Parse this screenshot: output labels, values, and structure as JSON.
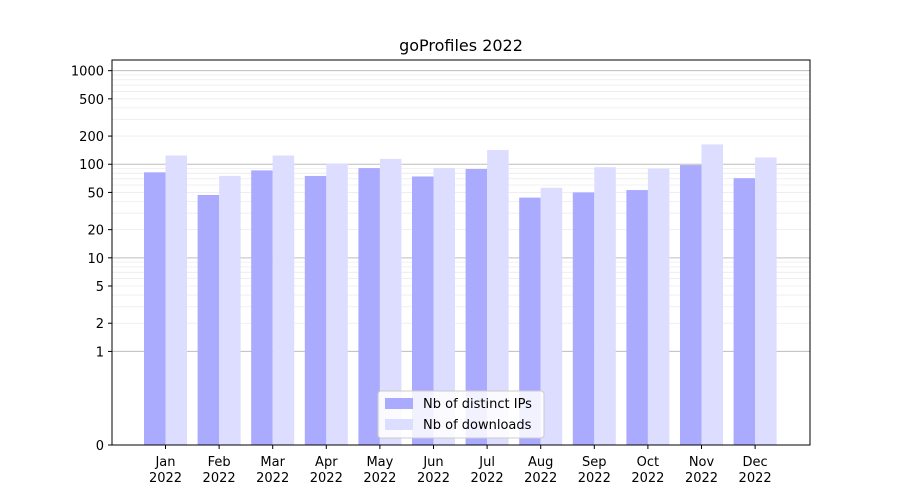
{
  "chart_data": {
    "type": "bar",
    "title": "goProfiles 2022",
    "xlabel": "",
    "ylabel": "",
    "yscale": "symlog",
    "ylim": [
      0,
      1300
    ],
    "yticks": [
      0,
      1,
      2,
      5,
      10,
      20,
      50,
      100,
      200,
      500,
      1000
    ],
    "grid": true,
    "legend_position": "bottom-center",
    "categories": [
      [
        "Jan",
        "2022"
      ],
      [
        "Feb",
        "2022"
      ],
      [
        "Mar",
        "2022"
      ],
      [
        "Apr",
        "2022"
      ],
      [
        "May",
        "2022"
      ],
      [
        "Jun",
        "2022"
      ],
      [
        "Jul",
        "2022"
      ],
      [
        "Aug",
        "2022"
      ],
      [
        "Sep",
        "2022"
      ],
      [
        "Oct",
        "2022"
      ],
      [
        "Nov",
        "2022"
      ],
      [
        "Dec",
        "2022"
      ]
    ],
    "series": [
      {
        "name": "Nb of distinct IPs",
        "color": "#aaaaff",
        "values": [
          82,
          47,
          86,
          75,
          91,
          74,
          89,
          44,
          50,
          53,
          98,
          71
        ]
      },
      {
        "name": "Nb of downloads",
        "color": "#ddddff",
        "values": [
          124,
          75,
          124,
          102,
          114,
          91,
          142,
          56,
          93,
          90,
          163,
          118
        ]
      }
    ]
  }
}
